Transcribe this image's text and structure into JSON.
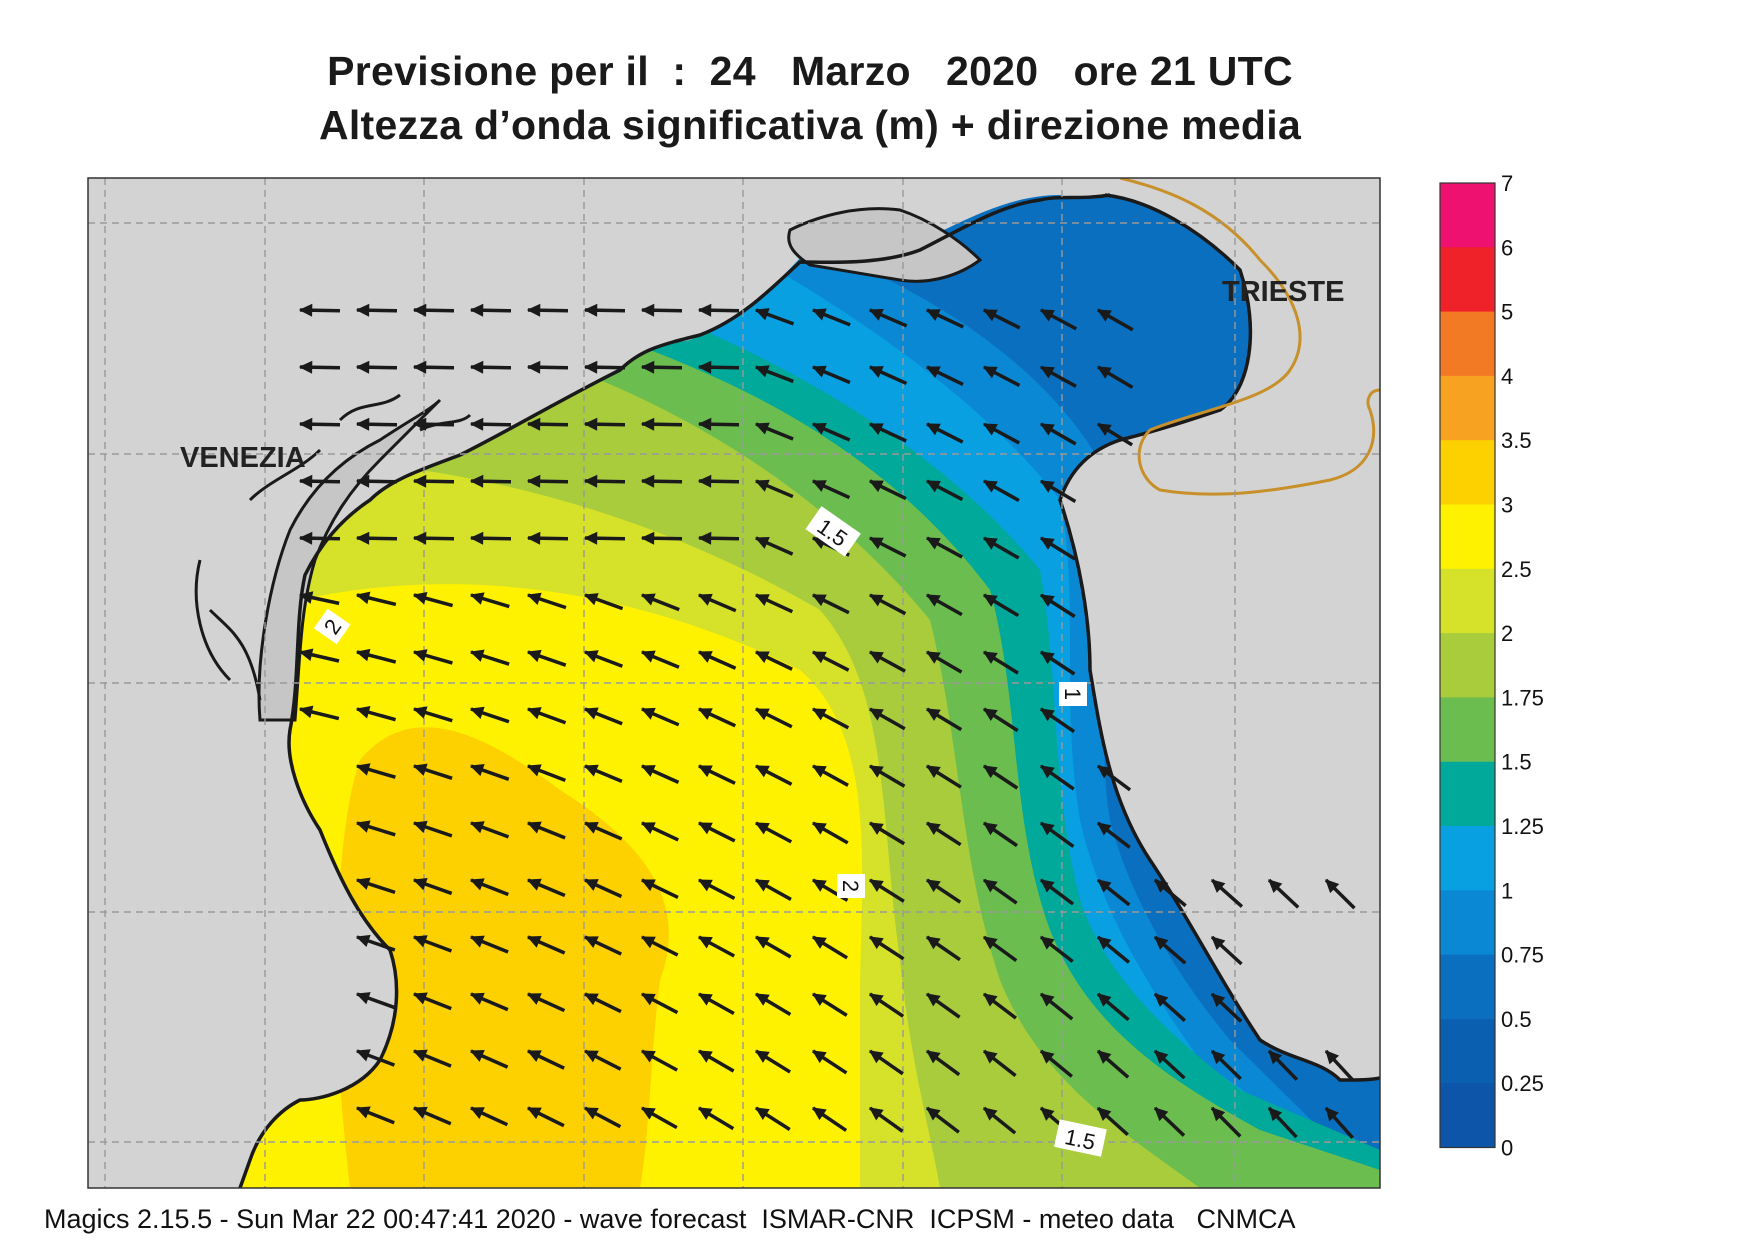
{
  "header": {
    "title_line1": "Previsione per il  :  24   Marzo   2020   ore 21 UTC",
    "title_line2": "Altezza d’onda significativa (m) + direzione media"
  },
  "map": {
    "place_labels": [
      {
        "id": "venezia",
        "text": "VENEZIA"
      },
      {
        "id": "trieste",
        "text": "TRIESTE"
      }
    ],
    "contour_labels": [
      "1.5",
      "2",
      "2",
      "1",
      "1.5"
    ],
    "colors": {
      "land": "#d3d3d3",
      "border": "#c8902a",
      "coast": "#1a1a1a",
      "arrow": "#1a1a1a"
    }
  },
  "legend": {
    "labels": [
      "7",
      "6",
      "5",
      "4",
      "3.5",
      "3",
      "2.5",
      "2",
      "1.75",
      "1.5",
      "1.25",
      "1",
      "0.75",
      "0.5",
      "0.25",
      "0"
    ],
    "colors": [
      "#ee1170",
      "#ee2228",
      "#f37a25",
      "#f7a220",
      "#fdd000",
      "#fff200",
      "#d6e12a",
      "#a8cc3c",
      "#6cbd4f",
      "#00a99a",
      "#08a0e0",
      "#0b88d4",
      "#0a6fbf",
      "#0a5fb0",
      "#0d55a8"
    ]
  },
  "footer": {
    "text": "Magics 2.15.5 - Sun Mar 22 00:47:41 2020 - wave forecast  ISMAR-CNR  ICPSM - meteo data   CNMCA"
  }
}
